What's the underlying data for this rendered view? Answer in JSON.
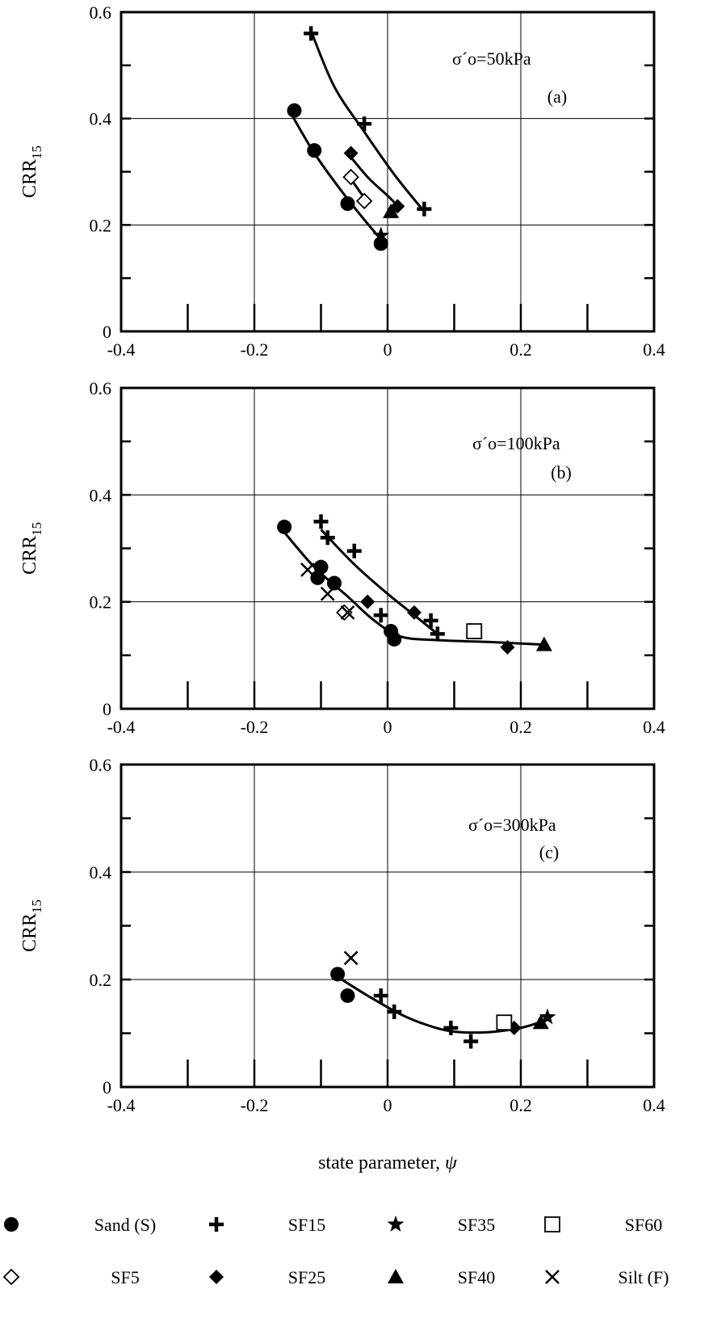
{
  "colors": {
    "ink": "#000000",
    "grid": "#000000",
    "background": "#ffffff"
  },
  "xlabel_prefix": "state parameter, ",
  "xlabel_symbol": "ψ",
  "ylabel_base": "CRR",
  "ylabel_sub": "15",
  "chart_data": [
    {
      "type": "scatter",
      "panel": "a",
      "annotation": "σ´o=50kPa",
      "tag": "(a)",
      "xlim": [
        -0.4,
        0.4
      ],
      "ylim": [
        0,
        0.6
      ],
      "xticks": [
        -0.4,
        -0.2,
        0,
        0.2,
        0.4
      ],
      "xtick_labels": [
        "-0.4",
        "-0.2",
        "0",
        "0.2",
        "0.4"
      ],
      "yticks": [
        0,
        0.2,
        0.4,
        0.6
      ],
      "ytick_labels": [
        "0",
        "0.2",
        "0.4",
        "0.6"
      ],
      "grid": true,
      "series": [
        {
          "name": "Sand (S)",
          "marker": "circle",
          "points": [
            [
              -0.14,
              0.415
            ],
            [
              -0.11,
              0.34
            ],
            [
              -0.06,
              0.24
            ],
            [
              -0.01,
              0.165
            ]
          ]
        },
        {
          "name": "SF5",
          "marker": "diamond-open",
          "points": [
            [
              -0.055,
              0.29
            ],
            [
              -0.035,
              0.245
            ]
          ]
        },
        {
          "name": "SF15",
          "marker": "plus",
          "points": [
            [
              -0.115,
              0.56
            ],
            [
              -0.035,
              0.39
            ],
            [
              0.055,
              0.23
            ]
          ]
        },
        {
          "name": "SF25",
          "marker": "diamond",
          "points": [
            [
              -0.055,
              0.335
            ],
            [
              0.015,
              0.235
            ]
          ]
        },
        {
          "name": "SF35",
          "marker": "star",
          "points": [
            [
              -0.01,
              0.18
            ]
          ]
        },
        {
          "name": "SF40",
          "marker": "triangle",
          "points": [
            [
              0.005,
              0.225
            ]
          ]
        }
      ],
      "curves": [
        [
          [
            -0.143,
            0.405
          ],
          [
            -0.11,
            0.335
          ],
          [
            -0.07,
            0.265
          ],
          [
            -0.035,
            0.21
          ],
          [
            -0.008,
            0.17
          ]
        ],
        [
          [
            -0.115,
            0.565
          ],
          [
            -0.08,
            0.46
          ],
          [
            -0.035,
            0.375
          ],
          [
            0.01,
            0.295
          ],
          [
            0.055,
            0.225
          ]
        ],
        [
          [
            -0.06,
            0.335
          ],
          [
            -0.03,
            0.29
          ],
          [
            0.0,
            0.255
          ],
          [
            0.018,
            0.232
          ]
        ],
        [
          [
            -0.06,
            0.295
          ],
          [
            -0.03,
            0.242
          ]
        ]
      ]
    },
    {
      "type": "scatter",
      "panel": "b",
      "annotation": "σ´o=100kPa",
      "tag": "(b)",
      "xlim": [
        -0.4,
        0.4
      ],
      "ylim": [
        0,
        0.6
      ],
      "xticks": [
        -0.4,
        -0.2,
        0,
        0.2,
        0.4
      ],
      "xtick_labels": [
        "-0.4",
        "-0.2",
        "0",
        "0.2",
        "0.4"
      ],
      "yticks": [
        0,
        0.2,
        0.4,
        0.6
      ],
      "ytick_labels": [
        "0",
        "0.2",
        "0.4",
        "0.6"
      ],
      "grid": true,
      "series": [
        {
          "name": "Sand (S)",
          "marker": "circle",
          "points": [
            [
              -0.155,
              0.34
            ],
            [
              -0.105,
              0.245
            ],
            [
              -0.1,
              0.265
            ],
            [
              -0.08,
              0.235
            ],
            [
              0.005,
              0.145
            ],
            [
              0.01,
              0.13
            ]
          ]
        },
        {
          "name": "SF5",
          "marker": "diamond-open",
          "points": [
            [
              -0.065,
              0.18
            ]
          ]
        },
        {
          "name": "SF15",
          "marker": "plus",
          "points": [
            [
              -0.1,
              0.35
            ],
            [
              -0.09,
              0.32
            ],
            [
              -0.05,
              0.295
            ],
            [
              -0.01,
              0.175
            ],
            [
              0.065,
              0.165
            ],
            [
              0.075,
              0.14
            ]
          ]
        },
        {
          "name": "SF25",
          "marker": "diamond",
          "points": [
            [
              -0.03,
              0.2
            ],
            [
              0.04,
              0.18
            ],
            [
              0.18,
              0.115
            ]
          ]
        },
        {
          "name": "SF40",
          "marker": "triangle",
          "points": [
            [
              0.235,
              0.12
            ]
          ]
        },
        {
          "name": "SF60",
          "marker": "square-open",
          "points": [
            [
              0.13,
              0.145
            ]
          ]
        },
        {
          "name": "Silt (F)",
          "marker": "x",
          "points": [
            [
              -0.12,
              0.26
            ],
            [
              -0.09,
              0.215
            ],
            [
              -0.06,
              0.18
            ]
          ]
        }
      ],
      "curves": [
        [
          [
            -0.155,
            0.33
          ],
          [
            -0.11,
            0.265
          ],
          [
            -0.06,
            0.21
          ],
          [
            -0.02,
            0.165
          ],
          [
            0.02,
            0.135
          ],
          [
            0.08,
            0.128
          ],
          [
            0.15,
            0.125
          ],
          [
            0.235,
            0.12
          ]
        ],
        [
          [
            -0.1,
            0.335
          ],
          [
            -0.05,
            0.27
          ],
          [
            0.0,
            0.215
          ],
          [
            0.04,
            0.175
          ],
          [
            0.075,
            0.14
          ]
        ]
      ]
    },
    {
      "type": "scatter",
      "panel": "c",
      "annotation": "σ´o=300kPa",
      "tag": "(c)",
      "xlim": [
        -0.4,
        0.4
      ],
      "ylim": [
        0,
        0.6
      ],
      "xticks": [
        -0.4,
        -0.2,
        0,
        0.2,
        0.4
      ],
      "xtick_labels": [
        "-0.4",
        "-0.2",
        "0",
        "0.2",
        "0.4"
      ],
      "yticks": [
        0,
        0.2,
        0.4,
        0.6
      ],
      "ytick_labels": [
        "0",
        "0.2",
        "0.4",
        "0.6"
      ],
      "grid": true,
      "series": [
        {
          "name": "Sand (S)",
          "marker": "circle",
          "points": [
            [
              -0.075,
              0.21
            ],
            [
              -0.06,
              0.17
            ]
          ]
        },
        {
          "name": "SF15",
          "marker": "plus",
          "points": [
            [
              -0.01,
              0.17
            ],
            [
              0.01,
              0.14
            ],
            [
              0.095,
              0.11
            ],
            [
              0.125,
              0.085
            ]
          ]
        },
        {
          "name": "SF25",
          "marker": "diamond",
          "points": [
            [
              0.19,
              0.11
            ]
          ]
        },
        {
          "name": "SF35",
          "marker": "star",
          "points": [
            [
              0.24,
              0.13
            ]
          ]
        },
        {
          "name": "SF40",
          "marker": "triangle",
          "points": [
            [
              0.23,
              0.12
            ]
          ]
        },
        {
          "name": "SF60",
          "marker": "square-open",
          "points": [
            [
              0.175,
              0.12
            ]
          ]
        },
        {
          "name": "Silt (F)",
          "marker": "x",
          "points": [
            [
              -0.055,
              0.24
            ]
          ]
        }
      ],
      "curves": [
        [
          [
            -0.075,
            0.205
          ],
          [
            -0.03,
            0.17
          ],
          [
            0.02,
            0.135
          ],
          [
            0.06,
            0.115
          ],
          [
            0.1,
            0.103
          ],
          [
            0.15,
            0.102
          ],
          [
            0.2,
            0.11
          ],
          [
            0.24,
            0.125
          ]
        ]
      ]
    }
  ],
  "legend": [
    {
      "marker": "circle",
      "label": "Sand (S)"
    },
    {
      "marker": "plus",
      "label": "SF15"
    },
    {
      "marker": "star",
      "label": "SF35"
    },
    {
      "marker": "square-open",
      "label": "SF60"
    },
    {
      "marker": "diamond-open",
      "label": "SF5"
    },
    {
      "marker": "diamond",
      "label": "SF25"
    },
    {
      "marker": "triangle",
      "label": "SF40"
    },
    {
      "marker": "x",
      "label": "Silt (F)"
    }
  ]
}
